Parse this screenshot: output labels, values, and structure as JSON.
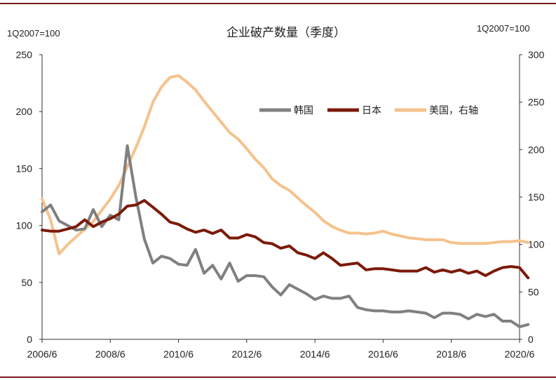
{
  "chart_data": {
    "type": "line",
    "title": "企业破产数量（季度）",
    "left_axis_note": "1Q2007=100",
    "right_axis_note": "1Q2007=100",
    "x_ticks": [
      "2006/6",
      "2008/6",
      "2010/6",
      "2012/6",
      "2014/6",
      "2016/6",
      "2018/6",
      "2020/6"
    ],
    "x_range": [
      0,
      56
    ],
    "y_left": {
      "ticks": [
        0,
        50,
        100,
        150,
        200,
        250
      ],
      "range": [
        0,
        250
      ]
    },
    "y_right": {
      "ticks": [
        0,
        50,
        100,
        150,
        200,
        250,
        300
      ],
      "range": [
        0,
        300
      ]
    },
    "x_unit": "quarters since 2006Q2",
    "series": [
      {
        "name": "韩国",
        "axis": "left",
        "color": "#808080",
        "values": [
          112,
          118,
          104,
          100,
          96,
          97,
          114,
          99,
          109,
          105,
          170,
          125,
          88,
          67,
          73,
          71,
          66,
          65,
          79,
          58,
          65,
          53,
          67,
          51,
          56,
          56,
          55,
          46,
          39,
          48,
          44,
          40,
          35,
          38,
          36,
          36,
          38,
          28,
          26,
          25,
          25,
          24,
          24,
          25,
          24,
          23,
          19,
          23,
          23,
          22,
          18,
          22,
          20,
          22,
          16,
          16,
          11,
          13
        ]
      },
      {
        "name": "日本",
        "axis": "left",
        "color": "#7b1a0a",
        "values": [
          96,
          95,
          95,
          97,
          99,
          105,
          99,
          103,
          106,
          110,
          117,
          118,
          122,
          116,
          110,
          103,
          101,
          97,
          94,
          96,
          93,
          96,
          89,
          89,
          92,
          90,
          85,
          84,
          80,
          82,
          76,
          74,
          71,
          76,
          71,
          65,
          66,
          67,
          61,
          62,
          62,
          61,
          60,
          60,
          60,
          63,
          59,
          61,
          59,
          61,
          58,
          60,
          56,
          60,
          63,
          64,
          63,
          54
        ]
      },
      {
        "name": "美国，右轴",
        "axis": "right",
        "color": "#f5c28c",
        "values": [
          148,
          126,
          90,
          100,
          108,
          116,
          124,
          136,
          148,
          162,
          182,
          202,
          224,
          250,
          266,
          276,
          278,
          271,
          263,
          251,
          240,
          229,
          218,
          211,
          201,
          190,
          181,
          169,
          162,
          157,
          149,
          141,
          134,
          125,
          119,
          115,
          112,
          112,
          111,
          112,
          114,
          111,
          109,
          107,
          106,
          105,
          105,
          105,
          102,
          101,
          101,
          101,
          101,
          102,
          103,
          103,
          104,
          102
        ]
      }
    ],
    "legend_position": "upper-right"
  }
}
